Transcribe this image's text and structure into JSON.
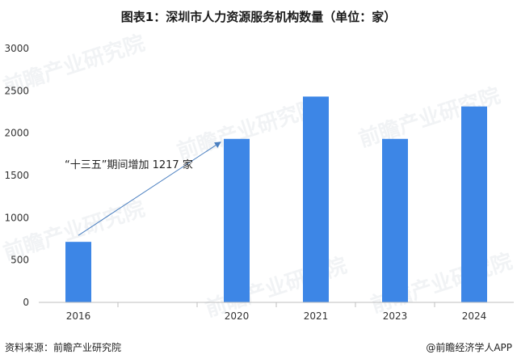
{
  "title": "图表1：深圳市人力资源服务机构数量（单位：家）",
  "source": "资料来源：前瞻产业研究院",
  "credit": "@前瞻经济学人APP",
  "watermark": "前瞻产业研究院",
  "colors": {
    "bar": "#3d86e6",
    "annotation": "#4a7fc0",
    "axis": "#bfbfbf"
  },
  "chart_data": {
    "type": "bar",
    "categories": [
      "2016",
      "",
      "2020",
      "2021",
      "2023",
      "2024"
    ],
    "values": [
      715,
      null,
      1932,
      2432,
      1932,
      2315
    ],
    "ylim": [
      0,
      3000
    ],
    "yticks": [
      0,
      500,
      1000,
      1500,
      2000,
      2500,
      3000
    ],
    "grid": false,
    "annotations": [
      {
        "text": "“十三五”期间增加 1217 家",
        "from_category": "2016",
        "to_category": "2020"
      }
    ]
  }
}
